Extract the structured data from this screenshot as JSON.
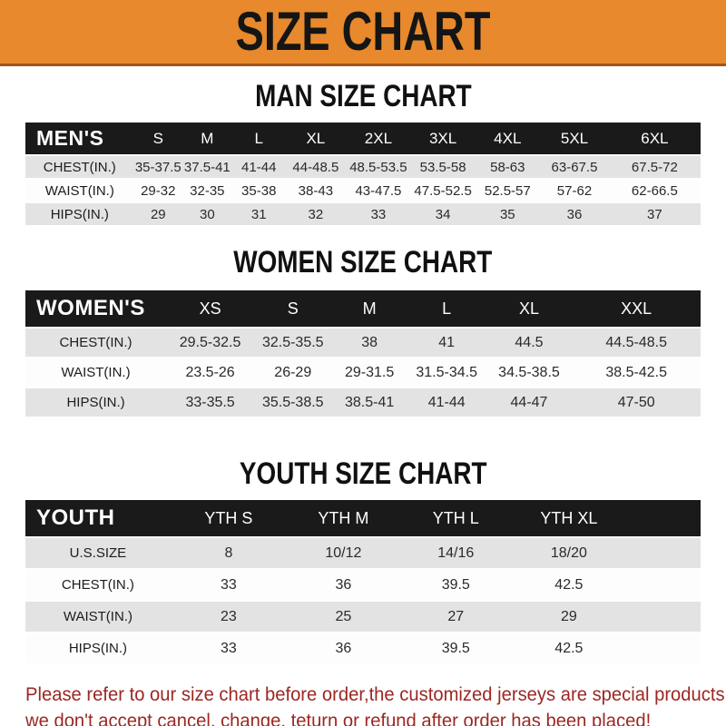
{
  "banner": {
    "title": "SIZE CHART"
  },
  "colors": {
    "banner_bg": "#e7892c",
    "banner_edge": "#a0561a",
    "bar_bg": "#1a1a1a",
    "row_alt": "#e3e3e3",
    "row_base": "#fdfdfd",
    "footer_text": "#9c2723"
  },
  "sections": [
    {
      "heading": "MAN SIZE CHART",
      "table": {
        "corner_label": "MEN'S",
        "columns": [
          "S",
          "M",
          "L",
          "XL",
          "2XL",
          "3XL",
          "4XL",
          "5XL",
          "6XL"
        ],
        "rows": [
          {
            "label": "CHEST(IN.)",
            "values": [
              "35-37.5",
              "37.5-41",
              "41-44",
              "44-48.5",
              "48.5-53.5",
              "53.5-58",
              "58-63",
              "63-67.5",
              "67.5-72"
            ]
          },
          {
            "label": "WAIST(IN.)",
            "values": [
              "29-32",
              "32-35",
              "35-38",
              "38-43",
              "43-47.5",
              "47.5-52.5",
              "52.5-57",
              "57-62",
              "62-66.5"
            ]
          },
          {
            "label": "HIPS(IN.)",
            "values": [
              "29",
              "30",
              "31",
              "32",
              "33",
              "34",
              "35",
              "36",
              "37"
            ]
          }
        ]
      }
    },
    {
      "heading": "WOMEN SIZE CHART",
      "table": {
        "corner_label": "WOMEN'S",
        "columns": [
          "XS",
          "S",
          "M",
          "L",
          "XL",
          "XXL"
        ],
        "rows": [
          {
            "label": "CHEST(IN.)",
            "values": [
              "29.5-32.5",
              "32.5-35.5",
              "38",
              "41",
              "44.5",
              "44.5-48.5"
            ]
          },
          {
            "label": "WAIST(IN.)",
            "values": [
              "23.5-26",
              "26-29",
              "29-31.5",
              "31.5-34.5",
              "34.5-38.5",
              "38.5-42.5"
            ]
          },
          {
            "label": "HIPS(IN.)",
            "values": [
              "33-35.5",
              "35.5-38.5",
              "38.5-41",
              "41-44",
              "44-47",
              "47-50"
            ]
          }
        ]
      }
    },
    {
      "heading": "YOUTH SIZE CHART",
      "table": {
        "corner_label": "YOUTH",
        "columns": [
          "YTH S",
          "YTH M",
          "YTH L",
          "YTH XL"
        ],
        "rows": [
          {
            "label": "U.S.SIZE",
            "values": [
              "8",
              "10/12",
              "14/16",
              "18/20"
            ]
          },
          {
            "label": "CHEST(IN.)",
            "values": [
              "33",
              "36",
              "39.5",
              "42.5"
            ]
          },
          {
            "label": "WAIST(IN.)",
            "values": [
              "23",
              "25",
              "27",
              "29"
            ]
          },
          {
            "label": "HIPS(IN.)",
            "values": [
              "33",
              "36",
              "39.5",
              "42.5"
            ]
          }
        ]
      }
    }
  ],
  "footer": {
    "lines": [
      "Please refer to our size chart before order,the customized jerseys are special products,",
      "we don't accept cancel, change, teturn or refund after order has been placed!"
    ]
  }
}
